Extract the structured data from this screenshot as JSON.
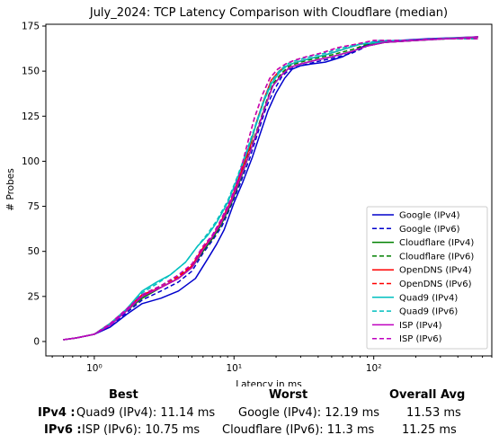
{
  "chart_data": {
    "type": "line",
    "title": "July_2024: TCP Latency Comparison with Cloudflare (median)",
    "xlabel": "Latency in ms",
    "ylabel": "# Probes",
    "xscale": "log",
    "xlim": [
      0.45,
      700
    ],
    "ylim": [
      -8,
      176
    ],
    "xticks": [
      1,
      10,
      100
    ],
    "xtick_labels": [
      "10⁰",
      "10¹",
      "10²"
    ],
    "yticks": [
      0,
      25,
      50,
      75,
      100,
      125,
      150,
      175
    ],
    "legend_position": "lower-right",
    "grid": false,
    "series": [
      {
        "name": "Google (IPv4)",
        "color": "#0000cc",
        "dash": false,
        "x": [
          0.6,
          0.75,
          1.0,
          1.3,
          1.7,
          2.2,
          3.0,
          4.0,
          5.3,
          6.5,
          7.5,
          8.5,
          10,
          11.5,
          13.5,
          15.5,
          17.5,
          20,
          23,
          26,
          30,
          36,
          45,
          60,
          80,
          100,
          150,
          250,
          550
        ],
        "y": [
          1,
          2,
          4,
          8,
          15,
          21,
          24,
          28,
          35,
          46,
          54,
          62,
          77,
          88,
          102,
          116,
          128,
          138,
          146,
          151,
          153,
          154,
          155,
          158,
          163,
          166,
          167,
          168,
          169
        ]
      },
      {
        "name": "Google (IPv6)",
        "color": "#0000cc",
        "dash": true,
        "x": [
          0.6,
          0.75,
          1.0,
          1.3,
          1.7,
          2.2,
          3.0,
          4.0,
          5.0,
          6.0,
          7.0,
          8.2,
          9.5,
          11,
          13,
          15,
          17,
          19.5,
          22,
          25,
          30,
          38,
          50,
          70,
          90,
          120,
          200,
          350,
          560
        ],
        "y": [
          1,
          2,
          4,
          9,
          16,
          23,
          28,
          33,
          39,
          49,
          56,
          64,
          75,
          87,
          102,
          117,
          130,
          140,
          147,
          151,
          153,
          155,
          157,
          160,
          164,
          166,
          167,
          168,
          168
        ]
      },
      {
        "name": "Cloudflare (IPv4)",
        "color": "#008000",
        "dash": false,
        "x": [
          0.6,
          0.75,
          1.0,
          1.3,
          1.7,
          2.2,
          3.0,
          4.0,
          5.0,
          6.0,
          7.0,
          8.0,
          9.5,
          11,
          13,
          15,
          17,
          19,
          22,
          25,
          30,
          38,
          50,
          70,
          90,
          120,
          200,
          350,
          560
        ],
        "y": [
          1,
          2,
          4,
          10,
          17,
          24,
          30,
          35,
          41,
          50,
          57,
          64,
          76,
          89,
          105,
          119,
          132,
          142,
          148,
          152,
          154,
          156,
          158,
          161,
          164,
          166,
          167,
          168,
          169
        ]
      },
      {
        "name": "Cloudflare (IPv6)",
        "color": "#008000",
        "dash": true,
        "x": [
          0.6,
          0.75,
          1.0,
          1.3,
          1.7,
          2.2,
          3.0,
          4.0,
          5.0,
          6.0,
          7.0,
          8.0,
          9.5,
          11,
          13,
          15,
          17,
          19,
          22,
          25,
          30,
          38,
          50,
          70,
          90,
          120,
          200,
          350,
          560
        ],
        "y": [
          1,
          2,
          4,
          10,
          17,
          25,
          31,
          36,
          42,
          51,
          58,
          65,
          77,
          90,
          106,
          120,
          133,
          143,
          149,
          153,
          155,
          157,
          159,
          162,
          165,
          166,
          167,
          168,
          168
        ]
      },
      {
        "name": "OpenDNS (IPv4)",
        "color": "#ff0000",
        "dash": false,
        "x": [
          0.6,
          0.75,
          1.0,
          1.3,
          1.7,
          2.2,
          3.0,
          4.0,
          5.0,
          6.0,
          7.0,
          8.0,
          9.5,
          11,
          13,
          14.5,
          16.5,
          18.5,
          21,
          24,
          28,
          35,
          45,
          60,
          80,
          110,
          180,
          300,
          560
        ],
        "y": [
          1,
          2,
          4,
          10,
          18,
          26,
          30,
          35,
          42,
          52,
          58,
          66,
          78,
          92,
          108,
          122,
          135,
          145,
          150,
          153,
          155,
          157,
          159,
          162,
          165,
          166,
          167,
          168,
          169
        ]
      },
      {
        "name": "OpenDNS (IPv6)",
        "color": "#ff0000",
        "dash": true,
        "x": [
          0.6,
          0.75,
          1.0,
          1.3,
          1.7,
          2.2,
          3.0,
          4.0,
          5.0,
          6.0,
          7.0,
          8.0,
          9.5,
          11,
          12.5,
          14,
          16,
          18,
          20.5,
          23.5,
          27,
          33,
          42,
          55,
          75,
          100,
          170,
          300,
          560
        ],
        "y": [
          1,
          2,
          4,
          10,
          18,
          26,
          31,
          36,
          43,
          52,
          59,
          67,
          79,
          93,
          110,
          124,
          137,
          146,
          151,
          154,
          156,
          158,
          160,
          163,
          165,
          167,
          167,
          168,
          168
        ]
      },
      {
        "name": "Quad9 (IPv4)",
        "color": "#00bfbf",
        "dash": false,
        "x": [
          0.6,
          0.75,
          1.0,
          1.3,
          1.7,
          2.2,
          2.8,
          3.5,
          4.5,
          5.5,
          6.5,
          7.5,
          9.0,
          10.5,
          12.5,
          14.5,
          16.5,
          18.5,
          21,
          24,
          28,
          35,
          45,
          60,
          80,
          110,
          180,
          300,
          560
        ],
        "y": [
          1,
          2,
          4,
          10,
          18,
          28,
          33,
          37,
          44,
          53,
          59,
          66,
          77,
          90,
          106,
          121,
          134,
          143,
          149,
          153,
          155,
          157,
          159,
          162,
          165,
          166,
          167,
          168,
          169
        ]
      },
      {
        "name": "Quad9 (IPv6)",
        "color": "#00bfbf",
        "dash": true,
        "x": [
          0.6,
          0.75,
          1.0,
          1.3,
          1.7,
          2.2,
          2.8,
          3.5,
          4.5,
          5.5,
          6.5,
          7.5,
          9.0,
          10.5,
          12.5,
          14.5,
          16.5,
          18.5,
          21,
          24,
          28,
          35,
          45,
          60,
          80,
          110,
          180,
          300,
          560
        ],
        "y": [
          1,
          2,
          4,
          10,
          18,
          27,
          32,
          37,
          44,
          53,
          60,
          67,
          78,
          91,
          107,
          122,
          135,
          144,
          150,
          154,
          156,
          158,
          160,
          163,
          165,
          167,
          167,
          168,
          168
        ]
      },
      {
        "name": "ISP (IPv4)",
        "color": "#bf00bf",
        "dash": false,
        "x": [
          0.6,
          0.75,
          1.0,
          1.3,
          1.7,
          2.2,
          3.0,
          4.0,
          5.0,
          6.0,
          7.0,
          8.0,
          9.5,
          11,
          13,
          15,
          17,
          19,
          22,
          25,
          30,
          38,
          50,
          70,
          90,
          120,
          200,
          350,
          560
        ],
        "y": [
          1,
          2,
          4,
          9,
          17,
          25,
          30,
          35,
          41,
          51,
          58,
          65,
          77,
          90,
          105,
          119,
          132,
          142,
          148,
          152,
          154,
          156,
          158,
          161,
          164,
          166,
          167,
          168,
          169
        ]
      },
      {
        "name": "ISP (IPv6)",
        "color": "#bf00bf",
        "dash": true,
        "x": [
          0.6,
          0.75,
          1.0,
          1.3,
          1.7,
          2.2,
          3.0,
          4.0,
          5.0,
          6.0,
          7.0,
          8.0,
          9.5,
          11,
          12.5,
          14,
          16,
          18,
          20.5,
          23.5,
          27,
          33,
          42,
          55,
          75,
          100,
          170,
          300,
          560
        ],
        "y": [
          1,
          2,
          4,
          10,
          18,
          26,
          31,
          37,
          43,
          53,
          59,
          67,
          79,
          93,
          110,
          124,
          137,
          146,
          151,
          154,
          156,
          158,
          160,
          163,
          165,
          167,
          167,
          168,
          168
        ]
      }
    ]
  },
  "summary": {
    "headers": {
      "best": "Best",
      "worst": "Worst",
      "overall": "Overall Avg"
    },
    "ipv4": {
      "label": "IPv4 :",
      "best": "Quad9 (IPv4): 11.14 ms",
      "worst": "Google (IPv4): 12.19 ms",
      "overall": "11.53 ms"
    },
    "ipv6": {
      "label": "IPv6 :",
      "best": "ISP (IPv6): 10.75 ms",
      "worst": "Cloudflare (IPv6): 11.3 ms",
      "overall": "11.25 ms"
    }
  }
}
